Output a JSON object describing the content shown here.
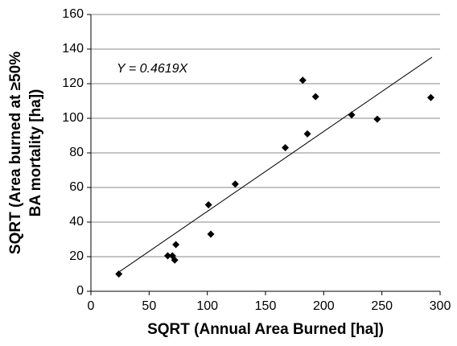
{
  "chart_data": {
    "type": "scatter",
    "xlabel": "SQRT (Annual Area Burned [ha])",
    "ylabel": [
      "SQRT (Area burned at ≥50%",
      "BA mortality [ha])"
    ],
    "x": [
      24,
      66,
      70,
      72,
      73,
      101,
      103,
      124,
      167,
      182,
      186,
      193,
      224,
      246,
      292
    ],
    "values": [
      10,
      20.5,
      20.5,
      18,
      27,
      50,
      33,
      62,
      83,
      122,
      91,
      112.5,
      102,
      99.5,
      112
    ],
    "color": "#000000",
    "trendline": {
      "equation": "Y = 0.4619X",
      "slope": 0.4619,
      "x_range": [
        25,
        293
      ]
    },
    "xlim": [
      0,
      300
    ],
    "xticks": [
      0,
      50,
      100,
      150,
      200,
      250,
      300
    ],
    "ylim": [
      0,
      160
    ],
    "yticks": [
      0,
      20,
      40,
      60,
      80,
      100,
      120,
      140,
      160
    ],
    "grid": true
  }
}
